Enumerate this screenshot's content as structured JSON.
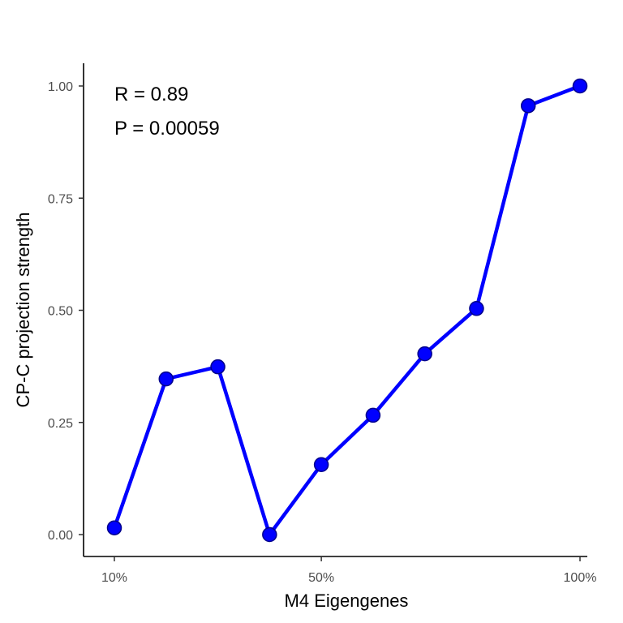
{
  "chart_data": {
    "type": "line",
    "xlabel": "M4 Eigengenes",
    "ylabel": "CP-C projection strength",
    "x_tick_labels": [
      "10%",
      "50%",
      "100%"
    ],
    "x_ticks": [
      10,
      50,
      100
    ],
    "y_tick_labels": [
      "0.00",
      "0.25",
      "0.50",
      "0.75",
      "1.00"
    ],
    "y_ticks": [
      0,
      0.25,
      0.5,
      0.75,
      1.0
    ],
    "xlim": [
      10,
      100
    ],
    "ylim": [
      0,
      1
    ],
    "grid": false,
    "legend": "none",
    "series": [
      {
        "x": [
          10,
          20,
          30,
          40,
          50,
          60,
          70,
          80,
          90,
          100
        ],
        "y": [
          0.015,
          0.347,
          0.374,
          0.0,
          0.156,
          0.266,
          0.403,
          0.504,
          0.956,
          1.0
        ],
        "color": "#0000ff"
      }
    ],
    "annotations": [
      "R = 0.89",
      "P = 0.00059"
    ]
  }
}
